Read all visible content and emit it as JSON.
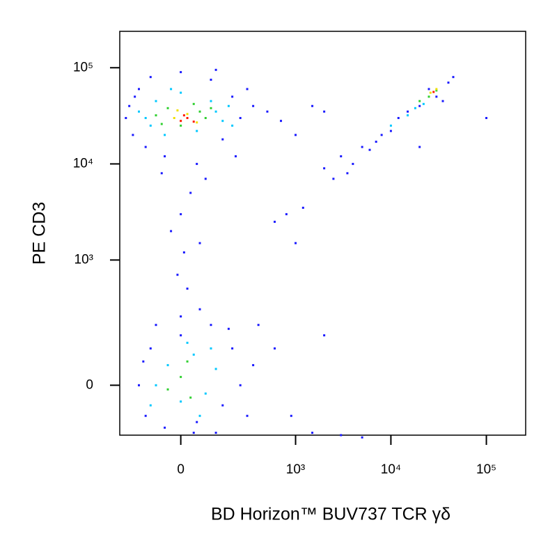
{
  "chart_data": {
    "type": "scatter",
    "scale": "biexponential",
    "x_label": "BD Horizon™ BUV737 TCR γδ",
    "y_label": "PE  CD3",
    "xlim": [
      -260,
      258000
    ],
    "ylim": [
      -150,
      239000
    ],
    "xticks": [
      0,
      {
        "value": 1000,
        "label": "10³"
      },
      {
        "value": 10000,
        "label": "10⁴"
      },
      {
        "value": 100000,
        "label": "10⁵"
      }
    ],
    "yticks": [
      0,
      {
        "value": 1000,
        "label": "10³"
      },
      {
        "value": 10000,
        "label": "10⁴"
      },
      {
        "value": 100000,
        "label": "10⁵"
      }
    ],
    "series": [
      {
        "color": "#1a1aff",
        "x": [
          -200,
          -180,
          -150,
          -120,
          -100,
          -50,
          0,
          50,
          100,
          150,
          200,
          250,
          300,
          220,
          -220,
          -60,
          80,
          350,
          -170,
          120,
          30,
          0,
          -30,
          60,
          10,
          -10,
          20,
          -150,
          -120,
          -100,
          -50,
          0,
          50,
          100,
          150,
          200,
          250,
          300,
          -130,
          0,
          60,
          120,
          180,
          350,
          -80,
          40,
          2000,
          2500,
          3000,
          4000,
          5000,
          6000,
          8000,
          10000,
          3500,
          7000,
          12000,
          15000,
          20000,
          30000,
          40000,
          45000,
          25000,
          35000,
          500,
          700,
          1000,
          800,
          1200,
          600,
          1500,
          2000,
          600,
          900,
          1500,
          3000,
          5000,
          2000,
          400,
          1000,
          20000,
          100000
        ],
        "values": [
          40000,
          20000,
          60000,
          15000,
          80000,
          12000,
          90000,
          10000,
          75000,
          18000,
          50000,
          30000,
          60000,
          12000,
          30000,
          8000,
          7000,
          40000,
          50000,
          95000,
          5000,
          3000,
          2000,
          1500,
          1200,
          700,
          500,
          0,
          -80,
          100,
          -120,
          150,
          -100,
          200,
          -50,
          100,
          0,
          -80,
          60,
          250,
          300,
          -140,
          180,
          50,
          200,
          -140,
          9000,
          7000,
          12000,
          10000,
          15000,
          14000,
          20000,
          22000,
          8000,
          17000,
          30000,
          35000,
          40000,
          50000,
          70000,
          80000,
          60000,
          45000,
          35000,
          28000,
          20000,
          3000,
          3500,
          2500,
          40000,
          35000,
          100,
          -80,
          -140,
          -150,
          -160,
          150,
          200,
          1500,
          15000,
          30000
        ]
      },
      {
        "color": "#00c8ff",
        "x": [
          -150,
          -100,
          -80,
          -50,
          0,
          50,
          100,
          150,
          120,
          -120,
          180,
          -30,
          200,
          -80,
          -40,
          0,
          40,
          80,
          120,
          -100,
          20,
          60,
          100,
          10000,
          15000,
          18000,
          22000
        ],
        "values": [
          35000,
          25000,
          45000,
          20000,
          55000,
          22000,
          45000,
          28000,
          35000,
          30000,
          40000,
          60000,
          25000,
          0,
          50,
          -40,
          80,
          -20,
          40,
          -50,
          120,
          -80,
          100,
          25000,
          32000,
          38000,
          42000
        ]
      },
      {
        "color": "#30d030",
        "x": [
          -80,
          -40,
          0,
          40,
          80,
          100,
          -60,
          60,
          -40,
          0,
          30,
          20,
          25000,
          20000,
          30000
        ],
        "values": [
          32000,
          38000,
          25000,
          42000,
          30000,
          38000,
          26000,
          35000,
          -10,
          20,
          -30,
          60,
          50000,
          45000,
          58000
        ]
      },
      {
        "color": "#f0e000",
        "x": [
          -20,
          20,
          50,
          -10,
          26000,
          30000
        ],
        "values": [
          30000,
          33000,
          27000,
          36000,
          55000,
          60000
        ]
      },
      {
        "color": "#ff1a00",
        "x": [
          0,
          20,
          40,
          10,
          28000
        ],
        "values": [
          28000,
          30000,
          27500,
          32000,
          56000
        ]
      }
    ]
  }
}
